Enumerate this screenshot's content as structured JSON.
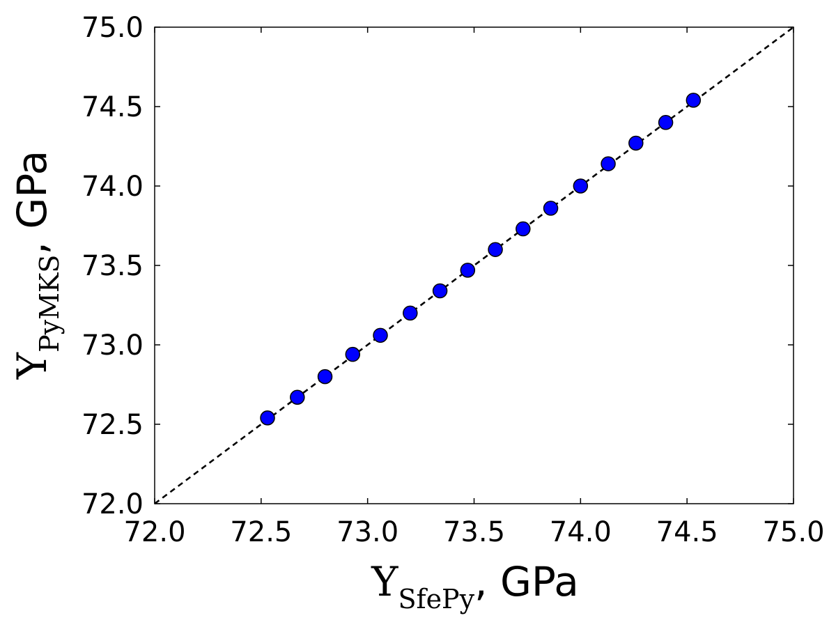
{
  "chart_data": {
    "type": "scatter",
    "title": "",
    "xlabel": {
      "symbol": "Y",
      "subscript": "SfePy",
      "suffix": ", GPa"
    },
    "ylabel": {
      "symbol": "Y",
      "subscript": "PyMKS",
      "suffix": ", GPa"
    },
    "xlim": [
      72.0,
      75.0
    ],
    "ylim": [
      72.0,
      75.0
    ],
    "xticks": [
      "72.0",
      "72.5",
      "73.0",
      "73.5",
      "74.0",
      "74.5",
      "75.0"
    ],
    "yticks": [
      "72.0",
      "72.5",
      "73.0",
      "73.5",
      "74.0",
      "74.5",
      "75.0"
    ],
    "grid": false,
    "legend": "none",
    "reference_line": {
      "style": "dashed",
      "color": "#000000",
      "from": [
        72.0,
        72.0
      ],
      "to": [
        75.0,
        75.0
      ]
    },
    "series": [
      {
        "color": "#0000ff",
        "marker": "circle",
        "x": [
          72.53,
          72.67,
          72.8,
          72.93,
          73.06,
          73.2,
          73.34,
          73.47,
          73.6,
          73.73,
          73.86,
          74.0,
          74.13,
          74.26,
          74.4,
          74.53
        ],
        "y": [
          72.54,
          72.67,
          72.8,
          72.94,
          73.06,
          73.2,
          73.34,
          73.47,
          73.6,
          73.73,
          73.86,
          74.0,
          74.14,
          74.27,
          74.4,
          74.54
        ]
      }
    ]
  }
}
